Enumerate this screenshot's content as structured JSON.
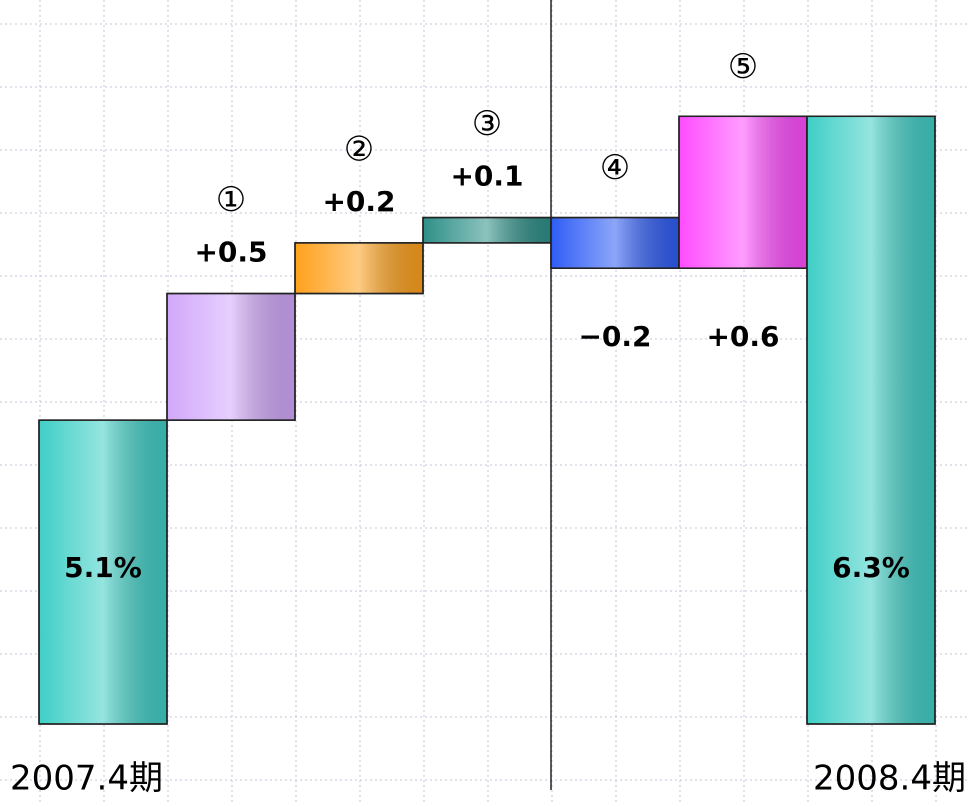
{
  "chart_data": {
    "type": "waterfall",
    "categories": [
      "2007.4期",
      null,
      null,
      null,
      null,
      null,
      "2008.4期"
    ],
    "annotations": [
      null,
      "①",
      "②",
      "③",
      "④",
      "⑤",
      null
    ],
    "values": [
      5.1,
      0.5,
      0.2,
      0.1,
      -0.2,
      0.6,
      6.3
    ],
    "value_labels": [
      "5.1%",
      "+0.5",
      "+0.2",
      "+0.1",
      "−0.2",
      "+0.6",
      "6.3%"
    ],
    "totals": [
      true,
      false,
      false,
      false,
      false,
      false,
      true
    ],
    "label_side": [
      "inside",
      "above",
      "above",
      "above",
      "below",
      "below",
      "inside"
    ],
    "colors": [
      "#3fcfc6",
      "#d2a8fb",
      "#ffa11c",
      "#2e9088",
      "#2f5df5",
      "#ff4cff",
      "#3fcfc6"
    ],
    "ylim": [
      3.9,
      6.7
    ],
    "grid": true
  }
}
